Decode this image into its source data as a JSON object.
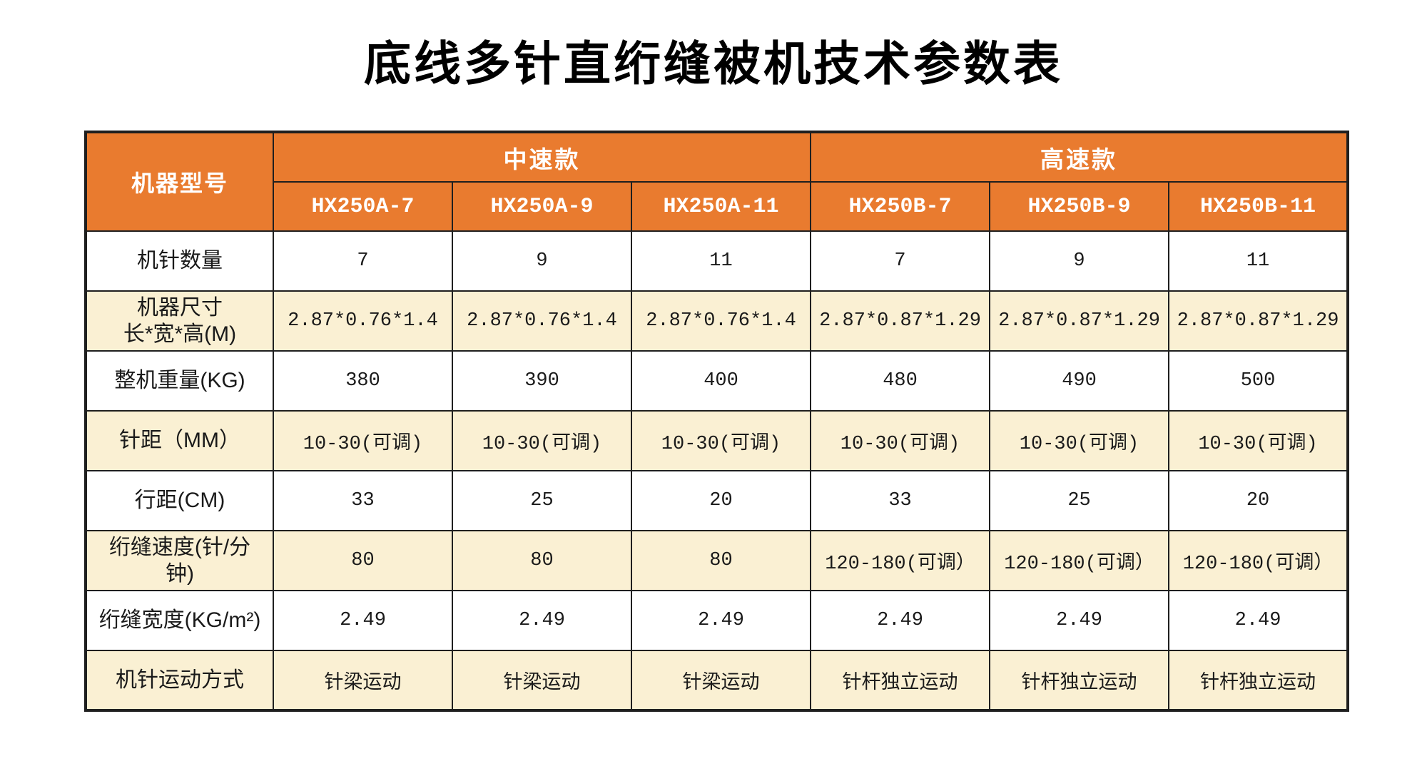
{
  "page_title": "底线多针直绗缝被机技术参数表",
  "colors": {
    "header_orange": "#E97B2F",
    "stripe_cream": "#FAF0D3",
    "stripe_white": "#FFFFFF",
    "border_dark": "#1F1F1F",
    "header_text": "#FFFFFF",
    "body_text": "#1A1A1A"
  },
  "table": {
    "corner_label": "机器型号",
    "groups": [
      {
        "label": "中速款",
        "models": [
          "HX250A-7",
          "HX250A-9",
          "HX250A-11"
        ]
      },
      {
        "label": "高速款",
        "models": [
          "HX250B-7",
          "HX250B-9",
          "HX250B-11"
        ]
      }
    ],
    "rows": [
      {
        "label": "机针数量",
        "values": [
          "7",
          "9",
          "11",
          "7",
          "9",
          "11"
        ]
      },
      {
        "label": "机器尺寸\n长*宽*高(M)",
        "values": [
          "2.87*0.76*1.4",
          "2.87*0.76*1.4",
          "2.87*0.76*1.4",
          "2.87*0.87*1.29",
          "2.87*0.87*1.29",
          "2.87*0.87*1.29"
        ]
      },
      {
        "label": "整机重量(KG)",
        "values": [
          "380",
          "390",
          "400",
          "480",
          "490",
          "500"
        ]
      },
      {
        "label": "针距（MM）",
        "values": [
          "10-30(可调)",
          "10-30(可调)",
          "10-30(可调)",
          "10-30(可调)",
          "10-30(可调)",
          "10-30(可调)"
        ]
      },
      {
        "label": "行距(CM)",
        "values": [
          "33",
          "25",
          "20",
          "33",
          "25",
          "20"
        ]
      },
      {
        "label": "绗缝速度(针/分\n钟)",
        "values": [
          "80",
          "80",
          "80",
          "120-180(可调）",
          "120-180(可调）",
          "120-180(可调）"
        ]
      },
      {
        "label": "绗缝宽度(KG/m²)",
        "values": [
          "2.49",
          "2.49",
          "2.49",
          "2.49",
          "2.49",
          "2.49"
        ]
      },
      {
        "label": "机针运动方式",
        "values": [
          "针梁运动",
          "针梁运动",
          "针梁运动",
          "针杆独立运动",
          "针杆独立运动",
          "针杆独立运动"
        ]
      }
    ]
  }
}
